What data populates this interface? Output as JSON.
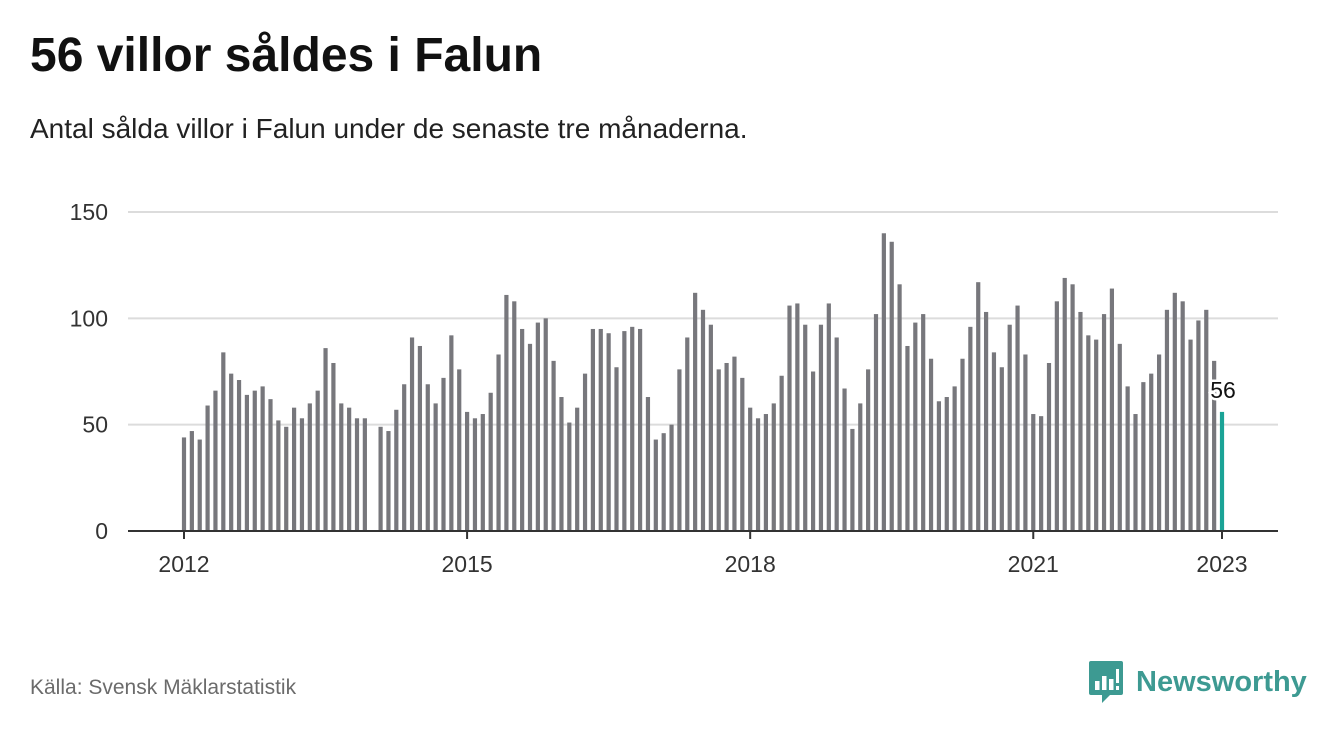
{
  "header": {
    "title": "56 villor såldes i Falun",
    "subtitle": "Antal sålda villor i Falun under de senaste tre månaderna."
  },
  "footer": {
    "source": "Källa: Svensk Mäklarstatistik",
    "brand": "Newsworthy",
    "brand_icon": "bar-chart-speech-icon"
  },
  "colors": {
    "bar": "#77777c",
    "highlight": "#1aa396",
    "grid": "#dcdcdc",
    "axis": "#333333",
    "brand": "#3d9a92"
  },
  "chart_data": {
    "type": "bar",
    "x_start": "2012-01",
    "x_end": "2023-01",
    "x_ticks": [
      "2012",
      "2015",
      "2018",
      "2021",
      "2023"
    ],
    "y_ticks": [
      0,
      50,
      100,
      150
    ],
    "ylim": [
      0,
      150
    ],
    "grid": true,
    "values": [
      44,
      47,
      43,
      59,
      66,
      84,
      74,
      71,
      64,
      66,
      68,
      62,
      52,
      49,
      58,
      53,
      60,
      66,
      86,
      79,
      60,
      58,
      53,
      53,
      null,
      49,
      47,
      57,
      69,
      91,
      87,
      69,
      60,
      72,
      92,
      76,
      56,
      53,
      55,
      65,
      83,
      111,
      108,
      95,
      88,
      98,
      100,
      80,
      63,
      51,
      58,
      74,
      95,
      95,
      93,
      77,
      94,
      96,
      95,
      63,
      43,
      46,
      50,
      76,
      91,
      112,
      104,
      97,
      76,
      79,
      82,
      72,
      58,
      53,
      55,
      60,
      73,
      106,
      107,
      97,
      75,
      97,
      107,
      91,
      67,
      48,
      60,
      76,
      102,
      140,
      136,
      116,
      87,
      98,
      102,
      81,
      61,
      63,
      68,
      81,
      96,
      117,
      103,
      84,
      77,
      97,
      106,
      83,
      55,
      54,
      79,
      108,
      119,
      116,
      103,
      92,
      90,
      102,
      114,
      88,
      68,
      55,
      70,
      74,
      83,
      104,
      112,
      108,
      90,
      99,
      104,
      80,
      56
    ],
    "highlight": {
      "index": 132,
      "label": "56"
    }
  }
}
